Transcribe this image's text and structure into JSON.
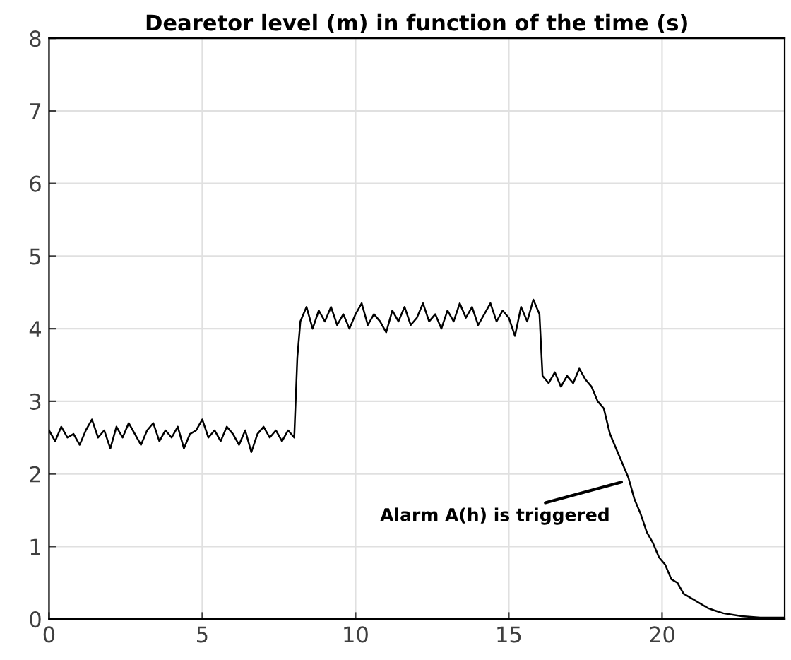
{
  "chart_data": {
    "type": "line",
    "title": "Dearetor level (m) in function of the time (s)",
    "x": [
      0,
      0.2,
      0.4,
      0.6,
      0.8,
      1.0,
      1.2,
      1.4,
      1.6,
      1.8,
      2.0,
      2.2,
      2.4,
      2.6,
      2.8,
      3.0,
      3.2,
      3.4,
      3.6,
      3.8,
      4.0,
      4.2,
      4.4,
      4.6,
      4.8,
      5.0,
      5.2,
      5.4,
      5.6,
      5.8,
      6.0,
      6.2,
      6.4,
      6.6,
      6.8,
      7.0,
      7.2,
      7.4,
      7.6,
      7.8,
      8.0,
      8.1,
      8.2,
      8.4,
      8.6,
      8.8,
      9.0,
      9.2,
      9.4,
      9.6,
      9.8,
      10.0,
      10.2,
      10.4,
      10.6,
      10.8,
      11.0,
      11.2,
      11.4,
      11.6,
      11.8,
      12.0,
      12.2,
      12.4,
      12.6,
      12.8,
      13.0,
      13.2,
      13.4,
      13.6,
      13.8,
      14.0,
      14.2,
      14.4,
      14.6,
      14.8,
      15.0,
      15.2,
      15.4,
      15.6,
      15.8,
      16.0,
      16.1,
      16.3,
      16.5,
      16.7,
      16.9,
      17.1,
      17.3,
      17.5,
      17.7,
      17.9,
      18.1,
      18.3,
      18.5,
      18.7,
      18.9,
      19.1,
      19.3,
      19.5,
      19.7,
      19.9,
      20.1,
      20.3,
      20.5,
      20.7,
      20.9,
      21.1,
      21.3,
      21.5,
      21.7,
      22.0,
      22.3,
      22.6,
      22.9,
      23.2,
      23.5,
      24.0
    ],
    "series": [
      {
        "color": "#000000",
        "values": [
          2.6,
          2.45,
          2.65,
          2.5,
          2.55,
          2.4,
          2.6,
          2.75,
          2.5,
          2.6,
          2.35,
          2.65,
          2.5,
          2.7,
          2.55,
          2.4,
          2.6,
          2.7,
          2.45,
          2.6,
          2.5,
          2.65,
          2.35,
          2.55,
          2.6,
          2.75,
          2.5,
          2.6,
          2.45,
          2.65,
          2.55,
          2.4,
          2.6,
          2.3,
          2.55,
          2.65,
          2.5,
          2.6,
          2.45,
          2.6,
          2.5,
          3.6,
          4.1,
          4.3,
          4.0,
          4.25,
          4.1,
          4.3,
          4.05,
          4.2,
          4.0,
          4.2,
          4.35,
          4.05,
          4.2,
          4.1,
          3.95,
          4.25,
          4.1,
          4.3,
          4.05,
          4.15,
          4.35,
          4.1,
          4.2,
          4.0,
          4.25,
          4.1,
          4.35,
          4.15,
          4.3,
          4.05,
          4.2,
          4.35,
          4.1,
          4.25,
          4.15,
          3.9,
          4.3,
          4.1,
          4.4,
          4.2,
          3.35,
          3.25,
          3.4,
          3.2,
          3.35,
          3.25,
          3.45,
          3.3,
          3.2,
          3.0,
          2.9,
          2.55,
          2.35,
          2.15,
          1.95,
          1.65,
          1.45,
          1.2,
          1.05,
          0.85,
          0.75,
          0.55,
          0.5,
          0.35,
          0.3,
          0.25,
          0.2,
          0.15,
          0.12,
          0.08,
          0.06,
          0.04,
          0.03,
          0.02,
          0.02,
          0.02
        ]
      }
    ],
    "xlim": [
      0,
      24
    ],
    "ylim": [
      0,
      8
    ],
    "xticks": [
      0,
      5,
      10,
      15,
      20
    ],
    "yticks": [
      0,
      1,
      2,
      3,
      4,
      5,
      6,
      7,
      8
    ],
    "grid": true,
    "annotations": [
      {
        "text": "Alarm A(h) is triggered",
        "x": 18.8,
        "y": 1.9
      }
    ]
  }
}
